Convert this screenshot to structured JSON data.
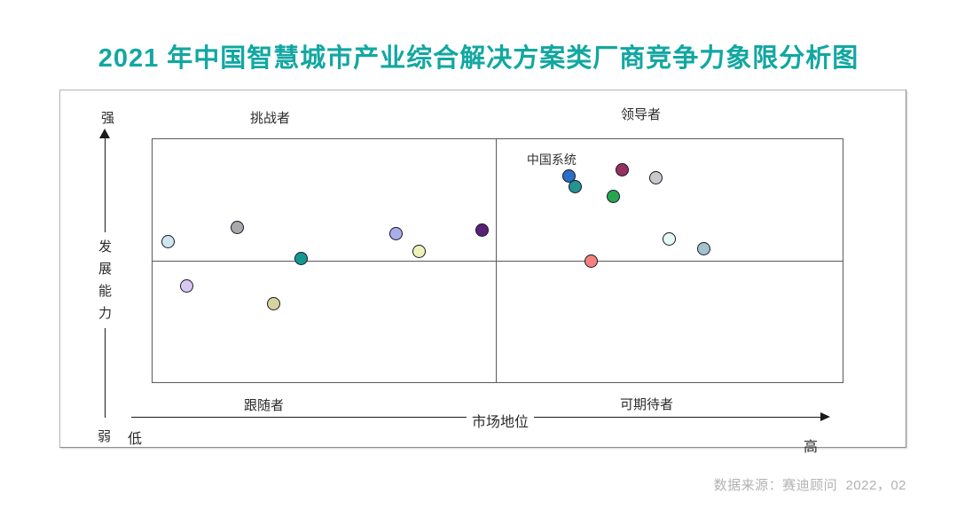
{
  "title": "2021 年中国智慧城市产业综合解决方案类厂商竞争力象限分析图",
  "title_color": "#12a7a1",
  "source_note": "数据来源：赛迪顾问  2022，02",
  "axes": {
    "y_label": "发展能力",
    "y_top": "强",
    "y_bottom": "弱",
    "x_label": "市场地位",
    "x_left": "低",
    "x_right": "高"
  },
  "quadrants": {
    "top_left": "挑战者",
    "top_right": "领导者",
    "bottom_left": "跟随者",
    "bottom_right": "可期待者"
  },
  "chart_data": {
    "type": "scatter",
    "title": "2021 年中国智慧城市产业综合解决方案类厂商竞争力象限分析图",
    "xlabel": "市场地位（低→高）",
    "ylabel": "发展能力（弱→强）",
    "xlim": [
      0,
      100
    ],
    "ylim": [
      0,
      100
    ],
    "grid": false,
    "legend": "none",
    "quadrant_dividers": {
      "x": 49.7,
      "y": 50.0
    },
    "annotation": {
      "label": "中国系统",
      "point_index": 8
    },
    "points": [
      {
        "x": 2.3,
        "y": 57.8,
        "color": "#cfe6ee",
        "quadrant": "挑战者"
      },
      {
        "x": 12.3,
        "y": 63.6,
        "color": "#a9a9a9",
        "quadrant": "挑战者"
      },
      {
        "x": 21.5,
        "y": 50.9,
        "color": "#12998f",
        "quadrant": "挑战者"
      },
      {
        "x": 35.3,
        "y": 61.1,
        "color": "#a9aee9",
        "quadrant": "挑战者"
      },
      {
        "x": 38.6,
        "y": 53.8,
        "color": "#eef2b8",
        "quadrant": "挑战者"
      },
      {
        "x": 47.8,
        "y": 62.5,
        "color": "#5a2178",
        "quadrant": "挑战者"
      },
      {
        "x": 4.9,
        "y": 39.6,
        "color": "#d9c9f2",
        "quadrant": "跟随者"
      },
      {
        "x": 17.5,
        "y": 32.4,
        "color": "#d6d49a",
        "quadrant": "跟随者"
      },
      {
        "x": 60.4,
        "y": 84.7,
        "color": "#2a6fc5",
        "quadrant": "领导者",
        "label": "中国系统"
      },
      {
        "x": 61.2,
        "y": 80.4,
        "color": "#259390",
        "quadrant": "领导者"
      },
      {
        "x": 68.1,
        "y": 87.3,
        "color": "#96305f",
        "quadrant": "领导者"
      },
      {
        "x": 72.9,
        "y": 84.0,
        "color": "#c9c9c9",
        "quadrant": "领导者"
      },
      {
        "x": 66.8,
        "y": 76.4,
        "color": "#27a64e",
        "quadrant": "领导者"
      },
      {
        "x": 74.9,
        "y": 58.9,
        "color": "#e6faf4",
        "quadrant": "领导者"
      },
      {
        "x": 79.9,
        "y": 54.9,
        "color": "#a3c2cc",
        "quadrant": "领导者"
      },
      {
        "x": 63.6,
        "y": 49.8,
        "color": "#f5817c",
        "quadrant": "可期待者"
      }
    ]
  }
}
